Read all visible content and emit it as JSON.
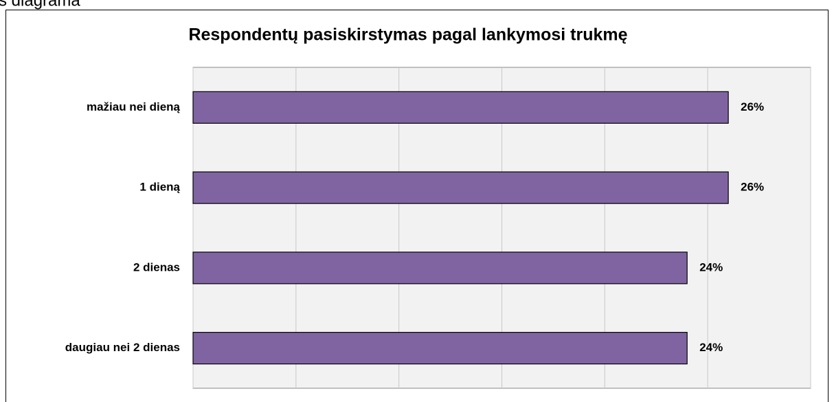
{
  "caption": "s diagrama",
  "chart_data": {
    "type": "barh",
    "title": "Respondentų pasiskirstymas pagal lankymosi trukmę",
    "categories": [
      "mažiau nei dieną",
      "1 dieną",
      "2 dienas",
      "daugiau nei 2 dienas"
    ],
    "values": [
      26,
      26,
      24,
      24
    ],
    "value_labels": [
      "26%",
      "26%",
      "24%",
      "24%"
    ],
    "color": "#8064a2",
    "xlim": [
      0,
      30
    ],
    "xticks": [
      0,
      5,
      10,
      15,
      20,
      25,
      30
    ],
    "grid": true
  }
}
